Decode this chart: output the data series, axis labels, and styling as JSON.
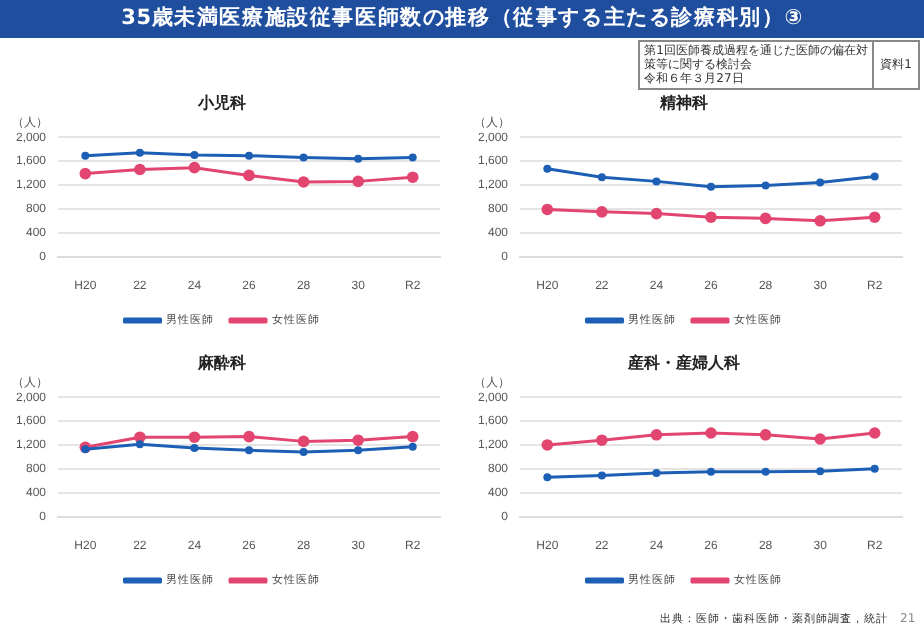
{
  "chart_data": [
    {
      "type": "line",
      "title": "小児科",
      "ylabel": "（人）",
      "categories": [
        "H20",
        "22",
        "24",
        "26",
        "28",
        "30",
        "R2"
      ],
      "series": [
        {
          "name": "男性医師",
          "color": "#1c5fb5",
          "values": [
            1690,
            1740,
            1700,
            1690,
            1660,
            1640,
            1660
          ]
        },
        {
          "name": "女性医師",
          "color": "#e2456f",
          "values": [
            1390,
            1460,
            1490,
            1360,
            1250,
            1260,
            1330
          ]
        }
      ],
      "ylim": [
        0,
        2000
      ],
      "yticks": [
        0,
        400,
        800,
        {
          "value": 1200,
          "label": "1,200"
        },
        {
          "value": 1600,
          "label": "1,600"
        },
        {
          "value": 2000,
          "label": "2,000"
        }
      ],
      "grid": "y",
      "legend": "bottom",
      "marker": "circle",
      "line_style": "solid",
      "annotations": [
        "35歳未満医療施設従事医師数の推移（従事する主たる診療科別）③",
        "第1回医師養成過程を通じた医師の偏在対策等に関する検討会",
        "令和６年３月27日",
        "資料1"
      ]
    },
    {
      "type": "line",
      "title": "精神科",
      "ylabel": "（人）",
      "categories": [
        "H20",
        "22",
        "24",
        "26",
        "28",
        "30",
        "R2"
      ],
      "series": [
        {
          "name": "男性医師",
          "color": "#1c5fb5",
          "values": [
            1470,
            1330,
            1260,
            1170,
            1190,
            1240,
            1340
          ]
        },
        {
          "name": "女性医師",
          "color": "#e2456f",
          "values": [
            790,
            750,
            720,
            660,
            640,
            600,
            660
          ]
        }
      ],
      "ylim": [
        0,
        2000
      ],
      "yticks": [
        0,
        400,
        800,
        {
          "value": 1200,
          "label": "1,200"
        },
        {
          "value": 1600,
          "label": "1,600"
        },
        {
          "value": 2000,
          "label": "2,000"
        }
      ],
      "grid": "y",
      "legend": "bottom",
      "marker": "circle",
      "line_style": "solid"
    },
    {
      "type": "line",
      "title": "麻酔科",
      "ylabel": "（人）",
      "categories": [
        "H20",
        "22",
        "24",
        "26",
        "28",
        "30",
        "R2"
      ],
      "series": [
        {
          "name": "男性医師",
          "color": "#1c5fb5",
          "values": [
            1130,
            1210,
            1150,
            1110,
            1080,
            1110,
            1170
          ]
        },
        {
          "name": "女性医師",
          "color": "#e2456f",
          "values": [
            1160,
            1330,
            1330,
            1340,
            1260,
            1280,
            1340
          ]
        }
      ],
      "ylim": [
        0,
        2000
      ],
      "yticks": [
        0,
        400,
        800,
        {
          "value": 1200,
          "label": "1,200"
        },
        {
          "value": 1600,
          "label": "1,600"
        },
        {
          "value": 2000,
          "label": "2,000"
        }
      ],
      "grid": "y",
      "legend": "bottom",
      "marker": "circle",
      "line_style": "solid"
    },
    {
      "type": "line",
      "title": "産科・産婦人科",
      "ylabel": "（人）",
      "categories": [
        "H20",
        "22",
        "24",
        "26",
        "28",
        "30",
        "R2"
      ],
      "series": [
        {
          "name": "男性医師",
          "color": "#1c5fb5",
          "values": [
            660,
            690,
            730,
            750,
            750,
            760,
            800
          ]
        },
        {
          "name": "女性医師",
          "color": "#e2456f",
          "values": [
            1200,
            1280,
            1370,
            1400,
            1370,
            1300,
            1400
          ]
        }
      ],
      "ylim": [
        0,
        2000
      ],
      "yticks": [
        0,
        400,
        800,
        {
          "value": 1200,
          "label": "1,200"
        },
        {
          "value": 1600,
          "label": "1,600"
        },
        {
          "value": 2000,
          "label": "2,000"
        }
      ],
      "grid": "y",
      "legend": "bottom",
      "marker": "circle",
      "line_style": "solid",
      "annotations": [
        "出典：医師・歯科医師・薬剤師調査，統計",
        "21"
      ]
    }
  ]
}
